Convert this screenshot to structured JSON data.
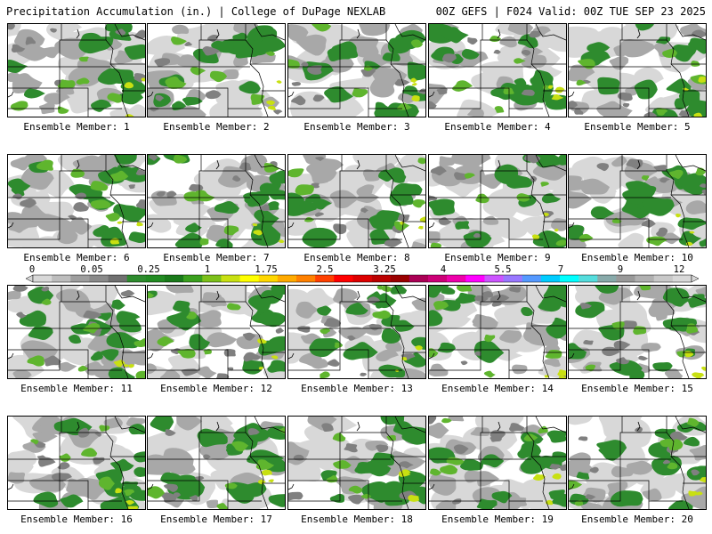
{
  "header": {
    "left_title": "Precipitation Accumulation (in.) | College of DuPage NEXLAB",
    "right_title": "00Z GEFS | F024 Valid: 00Z TUE SEP 23 2025"
  },
  "member_label": "Ensemble Member:",
  "members": [
    1,
    2,
    3,
    4,
    5,
    6,
    7,
    8,
    9,
    10,
    11,
    12,
    13,
    14,
    15,
    16,
    17,
    18,
    19,
    20
  ],
  "colorbar": {
    "ticks": [
      "0",
      "0.05",
      "0.25",
      "1",
      "1.75",
      "2.5",
      "3.25",
      "4",
      "5.5",
      "7",
      "9",
      "12"
    ],
    "colors": [
      "#d8d8d8",
      "#bdbdbd",
      "#9e9e9e",
      "#8a8a8a",
      "#707070",
      "#2e8b2e",
      "#228b22",
      "#1a7a1a",
      "#3aa01e",
      "#7cc01a",
      "#c8e012",
      "#ffff00",
      "#ffd700",
      "#ffaa00",
      "#ff8000",
      "#ff4000",
      "#ff0000",
      "#dd0000",
      "#bb0000",
      "#990000",
      "#aa0055",
      "#cc0077",
      "#ee00aa",
      "#ff00ff",
      "#cc55ff",
      "#9977ff",
      "#5599ff",
      "#00ccff",
      "#00ffff",
      "#55dddd",
      "#88aaaa",
      "#999999",
      "#b0b0b0",
      "#c8c8c8",
      "#d8d8d8"
    ]
  },
  "map_colors": {
    "light": "#d8d8d8",
    "grey": "#a8a8a8",
    "dark": "#808080",
    "green": "#2e8b2e",
    "lgreen": "#5fb52e",
    "yellow": "#c8e012"
  }
}
